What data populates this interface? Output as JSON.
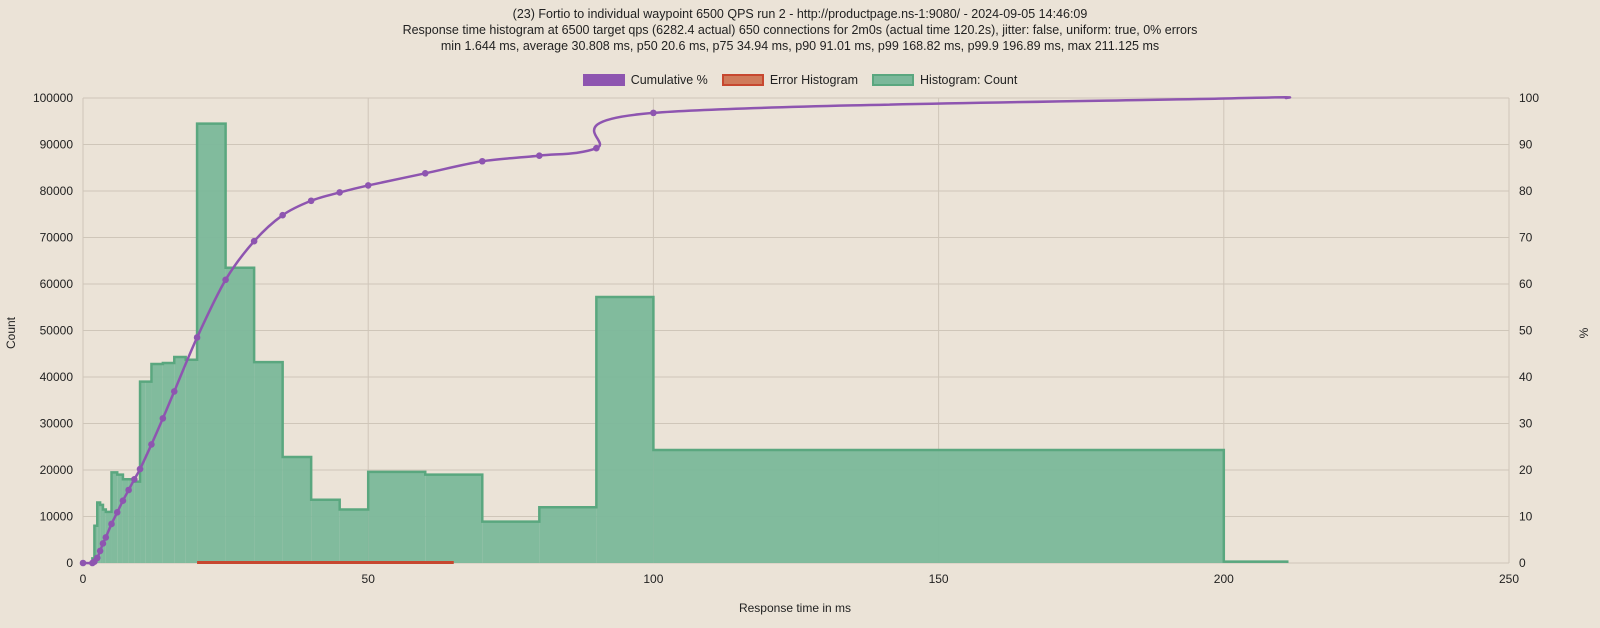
{
  "chart_data": {
    "type": "bar",
    "title_lines": [
      "(23) Fortio to individual waypoint 6500 QPS run 2 - http://productpage.ns-1:9080/ - 2024-09-05 14:46:09",
      "Response time histogram at 6500 target qps (6282.4 actual) 650 connections for 2m0s (actual time 120.2s), jitter: false, uniform: true, 0% errors",
      "min 1.644 ms, average 30.808 ms, p50 20.6 ms, p75 34.94 ms, p90 91.01 ms, p99 168.82 ms, p99.9 196.89 ms, max 211.125 ms"
    ],
    "xlabel": "Response time in ms",
    "ylabel": "Count",
    "y2label": "%",
    "xlim": [
      0,
      250
    ],
    "ylim": [
      0,
      100000
    ],
    "y2lim": [
      0,
      100
    ],
    "xticks": [
      0,
      50,
      100,
      150,
      200,
      250
    ],
    "yticks": [
      0,
      10000,
      20000,
      30000,
      40000,
      50000,
      60000,
      70000,
      80000,
      90000,
      100000
    ],
    "y2ticks": [
      0,
      10,
      20,
      30,
      40,
      50,
      60,
      70,
      80,
      90,
      100
    ],
    "grid": true,
    "legend_position": "top-center",
    "legend": [
      {
        "label": "Cumulative %",
        "color": "#8e55b0"
      },
      {
        "label": "Error Histogram",
        "color": "#c7593f"
      },
      {
        "label": "Histogram: Count",
        "color": "#5aa77f"
      }
    ],
    "colors": {
      "cumulative": "#8e55b0",
      "error_fill": "#cf7a5a",
      "error_stroke": "#c7472f",
      "hist_fill": "#7bb89a",
      "hist_stroke": "#5aa77f",
      "grid": "#cfc6b9",
      "background": "#ebe3d7"
    },
    "histogram": [
      {
        "start": 1.644,
        "end": 2,
        "count": 1000
      },
      {
        "start": 2,
        "end": 2.5,
        "count": 8000
      },
      {
        "start": 2.5,
        "end": 3,
        "count": 13000
      },
      {
        "start": 3,
        "end": 3.5,
        "count": 12500
      },
      {
        "start": 3.5,
        "end": 4,
        "count": 11500
      },
      {
        "start": 4,
        "end": 5,
        "count": 11000
      },
      {
        "start": 5,
        "end": 6,
        "count": 19500
      },
      {
        "start": 6,
        "end": 7,
        "count": 19000
      },
      {
        "start": 7,
        "end": 8,
        "count": 18000
      },
      {
        "start": 8,
        "end": 9,
        "count": 18000
      },
      {
        "start": 9,
        "end": 10,
        "count": 17500
      },
      {
        "start": 10,
        "end": 11,
        "count": 39000
      },
      {
        "start": 11,
        "end": 12,
        "count": 39000
      },
      {
        "start": 12,
        "end": 14,
        "count": 42800
      },
      {
        "start": 14,
        "end": 16,
        "count": 43000
      },
      {
        "start": 16,
        "end": 18,
        "count": 44300
      },
      {
        "start": 18,
        "end": 20,
        "count": 43700
      },
      {
        "start": 20,
        "end": 25,
        "count": 94500
      },
      {
        "start": 25,
        "end": 30,
        "count": 63500
      },
      {
        "start": 30,
        "end": 35,
        "count": 43200
      },
      {
        "start": 35,
        "end": 40,
        "count": 22800
      },
      {
        "start": 40,
        "end": 45,
        "count": 13600
      },
      {
        "start": 45,
        "end": 50,
        "count": 11500
      },
      {
        "start": 50,
        "end": 60,
        "count": 19600
      },
      {
        "start": 60,
        "end": 70,
        "count": 19000
      },
      {
        "start": 70,
        "end": 80,
        "count": 8900
      },
      {
        "start": 80,
        "end": 90,
        "count": 12000
      },
      {
        "start": 90,
        "end": 100,
        "count": 57200
      },
      {
        "start": 100,
        "end": 200,
        "count": 24300
      },
      {
        "start": 200,
        "end": 211.125,
        "count": 300
      }
    ],
    "error_histogram": [
      {
        "start": 20,
        "end": 65,
        "count": 0
      }
    ],
    "cumulative_percent": [
      {
        "x": 0,
        "y": 0
      },
      {
        "x": 1.644,
        "y": 0
      },
      {
        "x": 2,
        "y": 0.3
      },
      {
        "x": 2.5,
        "y": 1.1
      },
      {
        "x": 3,
        "y": 2.6
      },
      {
        "x": 3.5,
        "y": 4.2
      },
      {
        "x": 4,
        "y": 5.5
      },
      {
        "x": 5,
        "y": 8.4
      },
      {
        "x": 6,
        "y": 10.9
      },
      {
        "x": 7,
        "y": 13.4
      },
      {
        "x": 8,
        "y": 15.7
      },
      {
        "x": 9,
        "y": 18
      },
      {
        "x": 10,
        "y": 20.2
      },
      {
        "x": 12,
        "y": 25.5
      },
      {
        "x": 14,
        "y": 31.1
      },
      {
        "x": 16,
        "y": 36.9
      },
      {
        "x": 20,
        "y": 48.5
      },
      {
        "x": 25,
        "y": 60.9
      },
      {
        "x": 30,
        "y": 69.2
      },
      {
        "x": 35,
        "y": 74.8
      },
      {
        "x": 40,
        "y": 77.9
      },
      {
        "x": 45,
        "y": 79.7
      },
      {
        "x": 50,
        "y": 81.2
      },
      {
        "x": 60,
        "y": 83.8
      },
      {
        "x": 70,
        "y": 86.4
      },
      {
        "x": 80,
        "y": 87.6
      },
      {
        "x": 90,
        "y": 89.2
      },
      {
        "x": 100,
        "y": 96.8
      },
      {
        "x": 200,
        "y": 99.9
      },
      {
        "x": 211.125,
        "y": 100
      }
    ]
  }
}
